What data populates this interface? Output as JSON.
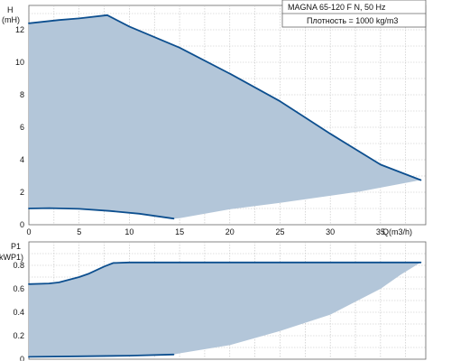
{
  "chart_data": [
    {
      "type": "area",
      "ylabel_line1": "H",
      "ylabel_line2": "(mH)",
      "xlabel": "Q(m3/h)",
      "xlim": [
        0,
        39.5
      ],
      "ylim": [
        0,
        13.5
      ],
      "xticks": [
        0,
        5,
        10,
        15,
        20,
        25,
        30,
        35
      ],
      "yticks": [
        0,
        2,
        4,
        6,
        8,
        10,
        12
      ],
      "legend": [
        "MAGNA 65-120 F N, 50 Hz",
        "Плотность = 1000 kg/m3"
      ],
      "legend_position": "top-right",
      "colors": {
        "fill": "#b3c6d9",
        "curve": "#0d4f8f",
        "grid": "#bfbfbf"
      },
      "max_curve": [
        [
          0,
          12.4
        ],
        [
          3,
          12.6
        ],
        [
          5,
          12.7
        ],
        [
          7.8,
          12.9
        ],
        [
          10,
          12.2
        ],
        [
          15,
          10.9
        ],
        [
          20,
          9.3
        ],
        [
          25,
          7.6
        ],
        [
          30,
          5.6
        ],
        [
          35,
          3.7
        ],
        [
          39,
          2.75
        ]
      ],
      "min_curve": [
        [
          0,
          1.0
        ],
        [
          2,
          1.02
        ],
        [
          5,
          0.98
        ],
        [
          8,
          0.85
        ],
        [
          11,
          0.68
        ],
        [
          14.4,
          0.38
        ]
      ],
      "region_lower_boundary": [
        [
          39,
          2.75
        ],
        [
          33,
          2.05
        ],
        [
          25,
          1.35
        ],
        [
          20,
          0.95
        ],
        [
          15,
          0.4
        ],
        [
          14.4,
          0.38
        ]
      ]
    },
    {
      "type": "area",
      "ylabel_line1": "P1",
      "ylabel_line2": "(kW",
      "ylabel_suffix": "P1)",
      "xlim": [
        0,
        39.5
      ],
      "ylim": [
        0,
        1.0
      ],
      "yticks": [
        0,
        0.2,
        0.4,
        0.6,
        0.8
      ],
      "yticklabels": [
        "0",
        "0.2",
        "0.4",
        "0.6",
        "0.8"
      ],
      "colors": {
        "fill": "#b3c6d9",
        "curve": "#0d4f8f",
        "grid": "#bfbfbf"
      },
      "max_curve": [
        [
          0,
          0.64
        ],
        [
          2,
          0.645
        ],
        [
          3,
          0.655
        ],
        [
          5,
          0.7
        ],
        [
          6,
          0.73
        ],
        [
          7.5,
          0.79
        ],
        [
          8.4,
          0.82
        ],
        [
          10,
          0.825
        ],
        [
          39,
          0.825
        ]
      ],
      "min_curve": [
        [
          0,
          0.02
        ],
        [
          5,
          0.025
        ],
        [
          10,
          0.03
        ],
        [
          14.4,
          0.04
        ]
      ],
      "region_lower_boundary": [
        [
          39,
          0.825
        ],
        [
          37,
          0.72
        ],
        [
          35,
          0.6
        ],
        [
          30,
          0.38
        ],
        [
          25,
          0.24
        ],
        [
          20,
          0.12
        ],
        [
          15,
          0.05
        ],
        [
          14.4,
          0.04
        ]
      ]
    }
  ]
}
